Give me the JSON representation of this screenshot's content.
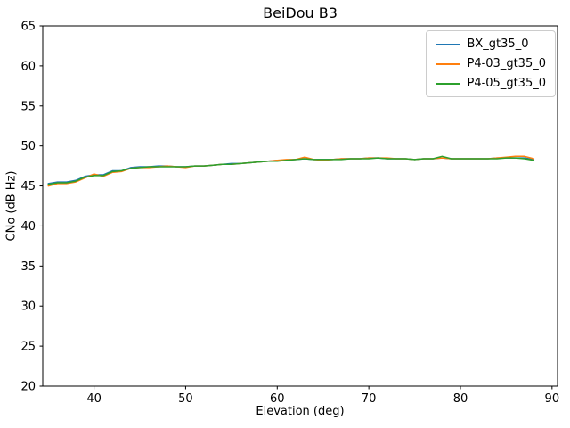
{
  "figure": {
    "title": "BeiDou B3",
    "xlabel": "Elevation (deg)",
    "ylabel": "CNo (dB Hz)"
  },
  "chart_data": {
    "type": "line",
    "title": "BeiDou B3",
    "xlabel": "Elevation (deg)",
    "ylabel": "CNo (dB Hz)",
    "xlim": [
      34.4,
      90.6
    ],
    "ylim": [
      20,
      65
    ],
    "xticks": [
      40,
      50,
      60,
      70,
      80,
      90
    ],
    "yticks": [
      20,
      25,
      30,
      35,
      40,
      45,
      50,
      55,
      60,
      65
    ],
    "grid": false,
    "legend_position": "upper right",
    "x": [
      35,
      36,
      37,
      38,
      39,
      40,
      41,
      42,
      43,
      44,
      45,
      46,
      47,
      48,
      49,
      50,
      51,
      52,
      53,
      54,
      55,
      56,
      57,
      58,
      59,
      60,
      61,
      62,
      63,
      64,
      65,
      66,
      67,
      68,
      69,
      70,
      71,
      72,
      73,
      74,
      75,
      76,
      77,
      78,
      79,
      80,
      81,
      82,
      83,
      84,
      85,
      86,
      87,
      88
    ],
    "series": [
      {
        "name": "BX_gt35_0",
        "color": "#1f77b4",
        "values": [
          45.3,
          45.5,
          45.5,
          45.7,
          46.2,
          46.4,
          46.4,
          46.9,
          46.9,
          47.3,
          47.4,
          47.4,
          47.5,
          47.5,
          47.4,
          47.4,
          47.5,
          47.5,
          47.6,
          47.7,
          47.8,
          47.8,
          47.9,
          48.0,
          48.1,
          48.2,
          48.2,
          48.3,
          48.4,
          48.3,
          48.3,
          48.3,
          48.4,
          48.4,
          48.4,
          48.5,
          48.5,
          48.4,
          48.4,
          48.4,
          48.3,
          48.4,
          48.4,
          48.5,
          48.4,
          48.4,
          48.4,
          48.4,
          48.4,
          48.5,
          48.5,
          48.5,
          48.5,
          48.3
        ]
      },
      {
        "name": "P4-03_gt35_0",
        "color": "#ff7f0e",
        "values": [
          45.0,
          45.3,
          45.3,
          45.5,
          46.0,
          46.5,
          46.2,
          46.7,
          46.8,
          47.2,
          47.3,
          47.3,
          47.4,
          47.5,
          47.4,
          47.3,
          47.5,
          47.5,
          47.6,
          47.7,
          47.7,
          47.8,
          47.9,
          48.0,
          48.1,
          48.2,
          48.3,
          48.3,
          48.6,
          48.3,
          48.2,
          48.3,
          48.4,
          48.4,
          48.4,
          48.5,
          48.5,
          48.5,
          48.4,
          48.4,
          48.3,
          48.4,
          48.4,
          48.5,
          48.4,
          48.4,
          48.4,
          48.4,
          48.4,
          48.5,
          48.6,
          48.7,
          48.7,
          48.4
        ]
      },
      {
        "name": "P4-05_gt35_0",
        "color": "#2ca02c",
        "values": [
          45.2,
          45.4,
          45.4,
          45.6,
          46.1,
          46.3,
          46.3,
          46.8,
          46.9,
          47.2,
          47.3,
          47.4,
          47.4,
          47.4,
          47.4,
          47.4,
          47.5,
          47.5,
          47.6,
          47.7,
          47.7,
          47.8,
          47.9,
          48.0,
          48.1,
          48.1,
          48.2,
          48.3,
          48.4,
          48.3,
          48.3,
          48.3,
          48.3,
          48.4,
          48.4,
          48.4,
          48.5,
          48.4,
          48.4,
          48.4,
          48.3,
          48.4,
          48.4,
          48.7,
          48.4,
          48.4,
          48.4,
          48.4,
          48.4,
          48.4,
          48.5,
          48.5,
          48.4,
          48.2
        ]
      }
    ]
  }
}
